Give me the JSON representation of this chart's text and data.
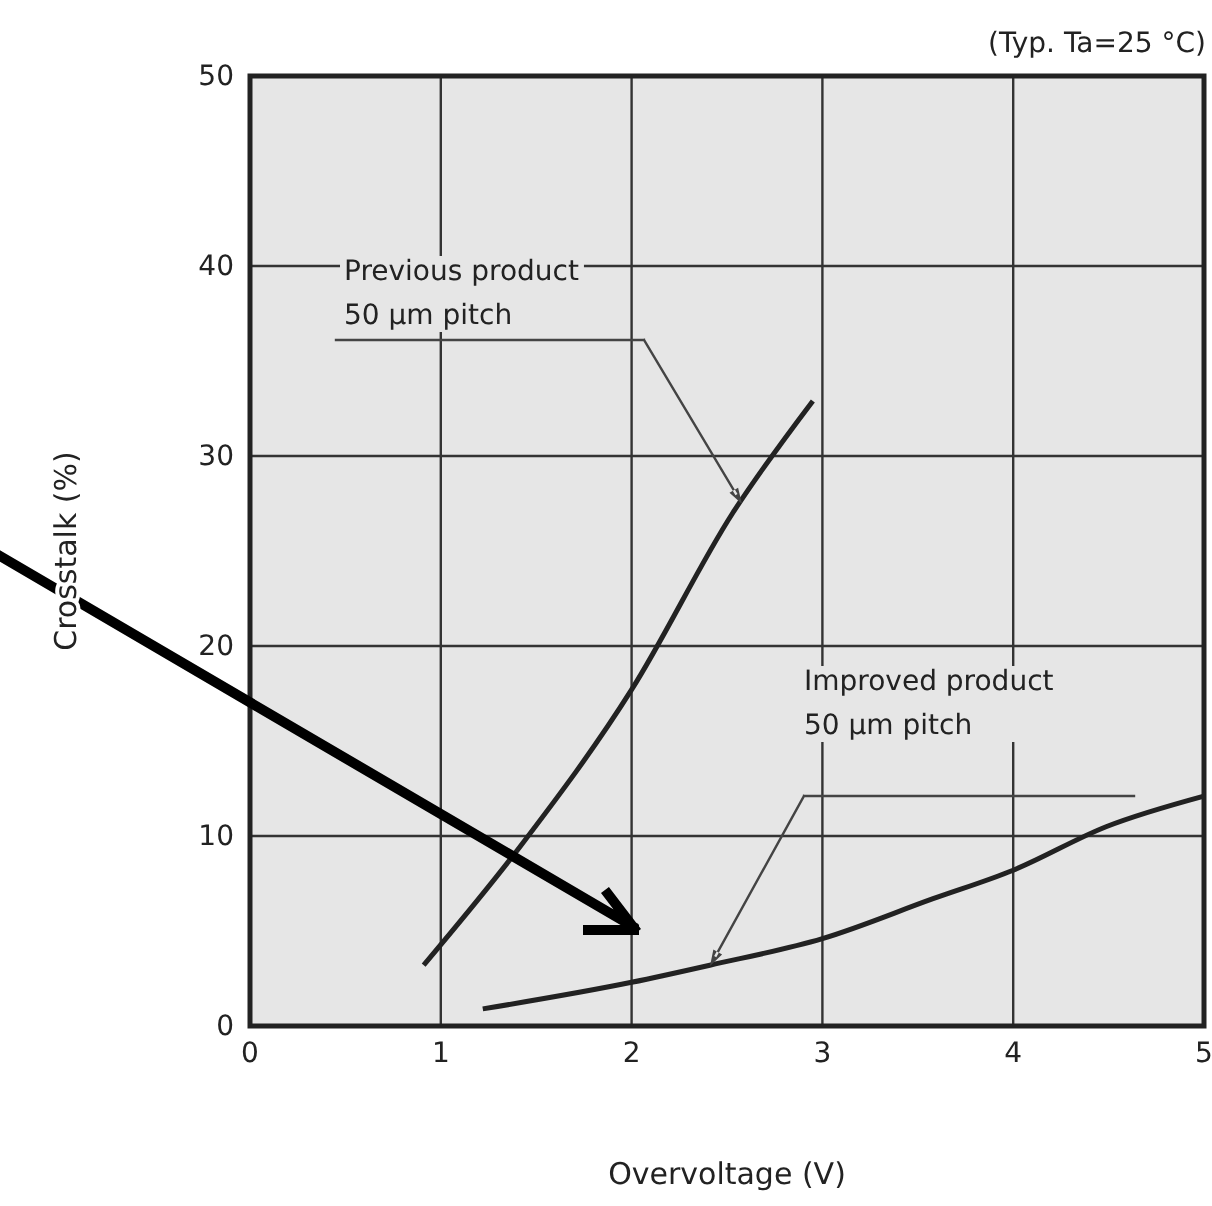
{
  "chart_data": {
    "type": "line",
    "xlabel": "Overvoltage (V)",
    "ylabel": "Crosstalk (%)",
    "xlim": [
      0,
      5
    ],
    "ylim": [
      0,
      50
    ],
    "xticks": [
      0,
      1,
      2,
      3,
      4,
      5
    ],
    "yticks": [
      0,
      10,
      20,
      30,
      40,
      50
    ],
    "grid": true,
    "marker": "none",
    "line_style": "solid",
    "series": [
      {
        "color": "#222222",
        "x": [
          0.91,
          1.42,
          2.0,
          2.53,
          2.95
        ],
        "values": [
          3.2,
          9.5,
          17.7,
          27.0,
          32.9
        ]
      },
      {
        "color": "#222222",
        "x": [
          1.22,
          2.0,
          2.41,
          3.0,
          3.58,
          4.0,
          4.49,
          5.0
        ],
        "values": [
          0.9,
          2.3,
          3.2,
          4.6,
          6.7,
          8.2,
          10.5,
          12.1
        ]
      }
    ],
    "annotations": [
      "(Typ. Ta=25 °C)",
      "Previous product\n50 µm pitch",
      "Improved product\n50 µm pitch"
    ]
  }
}
